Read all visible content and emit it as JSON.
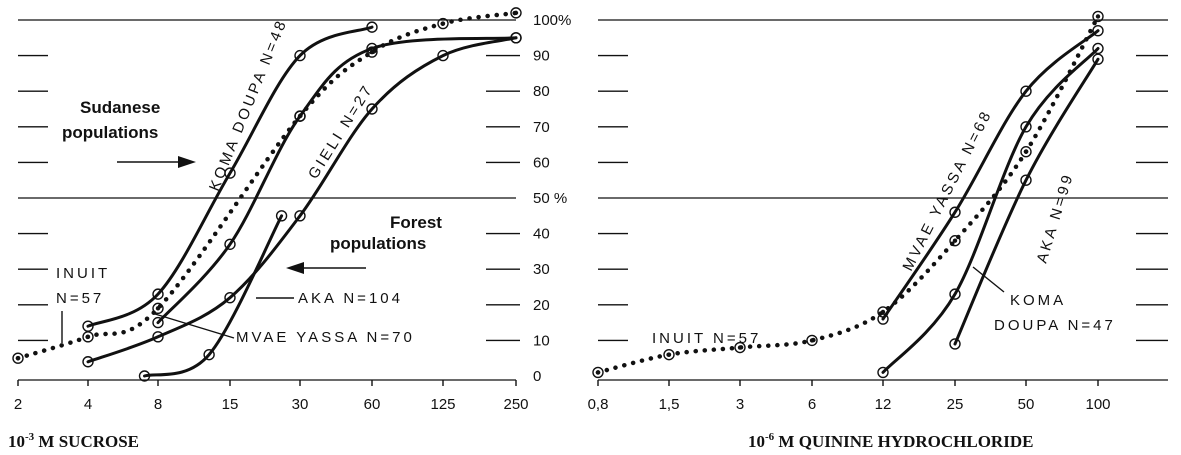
{
  "chart_data": [
    {
      "type": "line",
      "xscale": "log",
      "xticks": [
        "2",
        "4",
        "8",
        "15",
        "30",
        "60",
        "125",
        "250"
      ],
      "xlabel_prefix": "10",
      "xlabel_exp": "-3",
      "xlabel_rest": " M SUCROSE",
      "ylim": [
        0,
        100
      ],
      "series": [
        {
          "name": "KOMA DOUPA N=48",
          "points": [
            [
              4,
              14
            ],
            [
              8,
              23
            ],
            [
              15,
              57
            ],
            [
              30,
              90
            ],
            [
              60,
              98
            ]
          ]
        },
        {
          "name": "GIELI N=27",
          "points": [
            [
              8,
              15
            ],
            [
              15,
              37
            ],
            [
              30,
              73
            ],
            [
              60,
              92
            ],
            [
              250,
              95
            ]
          ]
        },
        {
          "name": "AKA N=104",
          "points": [
            [
              4,
              4
            ],
            [
              8,
              11
            ],
            [
              15,
              22
            ],
            [
              30,
              45
            ],
            [
              60,
              75
            ],
            [
              125,
              90
            ],
            [
              250,
              95
            ]
          ]
        },
        {
          "name": "MVAE YASSA N=70",
          "points": [
            [
              7,
              0
            ],
            [
              12.5,
              6
            ],
            [
              25,
              45
            ]
          ]
        },
        {
          "name": "INUIT N=57",
          "points": [
            [
              2,
              5
            ],
            [
              4,
              11
            ],
            [
              8,
              19
            ],
            [
              30,
              73
            ],
            [
              60,
              91
            ],
            [
              125,
              99
            ],
            [
              250,
              102
            ]
          ]
        }
      ],
      "annotations": [
        {
          "text": "Sudanese"
        },
        {
          "text": "populations"
        },
        {
          "text": "Forest"
        },
        {
          "text": "populations"
        }
      ]
    },
    {
      "type": "line",
      "xscale": "log",
      "xticks": [
        "0,8",
        "1,5",
        "3",
        "6",
        "12",
        "25",
        "50",
        "100"
      ],
      "yticks": [
        "0",
        "10",
        "20",
        "30",
        "40",
        "50 %",
        "60",
        "70",
        "80",
        "90",
        "100%"
      ],
      "xlabel_prefix": "10",
      "xlabel_exp": "-6",
      "xlabel_rest": " M QUININE HYDROCHLORIDE",
      "ylim": [
        0,
        100
      ],
      "series": [
        {
          "name": "INUIT N=57",
          "points": [
            [
              0.8,
              1
            ],
            [
              1.5,
              6
            ],
            [
              3,
              8
            ],
            [
              6,
              10
            ],
            [
              12,
              18
            ],
            [
              25,
              38
            ],
            [
              50,
              63
            ],
            [
              100,
              101
            ]
          ]
        },
        {
          "name": "MVAE YASSA N=68",
          "points": [
            [
              12,
              16
            ],
            [
              25,
              46
            ],
            [
              50,
              80
            ],
            [
              100,
              97
            ]
          ]
        },
        {
          "name": "AKA N=99",
          "points": [
            [
              12,
              1
            ],
            [
              25,
              23
            ],
            [
              50,
              70
            ],
            [
              100,
              92
            ]
          ]
        },
        {
          "name": "KOMA DOUPA N=47",
          "points": [
            [
              25,
              9
            ],
            [
              50,
              55
            ],
            [
              100,
              89
            ]
          ]
        }
      ]
    }
  ]
}
